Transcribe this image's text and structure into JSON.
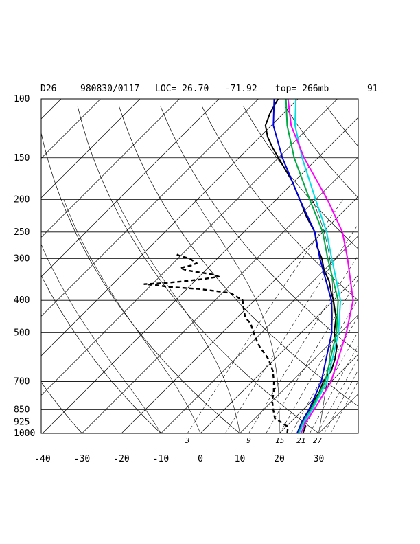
{
  "header": {
    "station": "D26",
    "datetime": "980830/0117",
    "location": "LOC= 26.70   -71.92",
    "top": "top= 266mb",
    "number": "91"
  },
  "chart_data": {
    "type": "line",
    "chart_kind": "skew-T log-P diagram",
    "y_axis": {
      "scale": "log",
      "range": [
        1000,
        100
      ],
      "ticks": [
        "100",
        "150",
        "200",
        "250",
        "300",
        "400",
        "500",
        "700",
        "850",
        "925",
        "1000"
      ]
    },
    "x_axis": {
      "range": [
        -40,
        40
      ],
      "ticks": [
        "-40",
        "-30",
        "-20",
        "-10",
        "0",
        "10",
        "20",
        "30"
      ]
    },
    "mixing_ratio_labels": [
      "3",
      "9",
      "15",
      "21",
      "27"
    ],
    "background_lines": [
      "isobars",
      "skewed isotherms",
      "dry adiabats",
      "moist adiabats",
      "mixing ratio lines (dashed)"
    ],
    "series": [
      {
        "color": "#000000",
        "style": "solid",
        "points": [
          [
            1000,
            26.0
          ],
          [
            950,
            24.8
          ],
          [
            925,
            23.0
          ],
          [
            900,
            22.3
          ],
          [
            850,
            21.6
          ],
          [
            800,
            20.5
          ],
          [
            750,
            19.6
          ],
          [
            700,
            18.0
          ],
          [
            650,
            17.3
          ],
          [
            600,
            15.3
          ],
          [
            550,
            12.6
          ],
          [
            500,
            8.4
          ],
          [
            450,
            5.0
          ],
          [
            400,
            0.0
          ],
          [
            375,
            -3.0
          ],
          [
            350,
            -6.0
          ],
          [
            325,
            -10.0
          ],
          [
            300,
            -13.5
          ],
          [
            275,
            -18.0
          ],
          [
            250,
            -22.0
          ],
          [
            225,
            -28.0
          ],
          [
            200,
            -34.0
          ],
          [
            175,
            -41.0
          ],
          [
            150,
            -50.0
          ],
          [
            140,
            -54.0
          ],
          [
            130,
            -58.0
          ],
          [
            120,
            -61.5
          ],
          [
            110,
            -63.5
          ],
          [
            100,
            -65.0
          ]
        ]
      },
      {
        "color": "#000000",
        "style": "dashed",
        "points": [
          [
            1000,
            22.0
          ],
          [
            970,
            21.0
          ],
          [
            950,
            20.0
          ],
          [
            925,
            17.5
          ],
          [
            900,
            15.0
          ],
          [
            880,
            14.0
          ],
          [
            850,
            12.5
          ],
          [
            800,
            10.0
          ],
          [
            750,
            8.0
          ],
          [
            700,
            5.5
          ],
          [
            650,
            2.5
          ],
          [
            600,
            -1.5
          ],
          [
            550,
            -7.0
          ],
          [
            520,
            -10.0
          ],
          [
            500,
            -12.0
          ],
          [
            470,
            -15.0
          ],
          [
            450,
            -18.0
          ],
          [
            420,
            -21.0
          ],
          [
            400,
            -23.0
          ],
          [
            380,
            -28.0
          ],
          [
            370,
            -37.0
          ],
          [
            365,
            -45.0
          ],
          [
            360,
            -49.0
          ],
          [
            358,
            -52.0
          ],
          [
            355,
            -47.0
          ],
          [
            350,
            -42.0
          ],
          [
            345,
            -38.0
          ],
          [
            340,
            -35.0
          ],
          [
            335,
            -37.0
          ],
          [
            330,
            -41.0
          ],
          [
            325,
            -45.0
          ],
          [
            320,
            -47.0
          ],
          [
            315,
            -45.0
          ],
          [
            310,
            -44.0
          ],
          [
            300,
            -47.0
          ],
          [
            295,
            -50.0
          ],
          [
            290,
            -52.0
          ]
        ]
      },
      {
        "color": "#0000dd",
        "style": "solid",
        "points": [
          [
            1000,
            24.5
          ],
          [
            925,
            22.8
          ],
          [
            850,
            21.5
          ],
          [
            700,
            17.5
          ],
          [
            500,
            7.8
          ],
          [
            400,
            -0.5
          ],
          [
            300,
            -14.0
          ],
          [
            250,
            -22.0
          ],
          [
            200,
            -34.0
          ],
          [
            150,
            -49.0
          ],
          [
            120,
            -59.5
          ],
          [
            100,
            -66.0
          ]
        ]
      },
      {
        "color": "#00aa44",
        "style": "solid",
        "points": [
          [
            1000,
            24.8
          ],
          [
            925,
            23.2
          ],
          [
            850,
            22.0
          ],
          [
            700,
            18.5
          ],
          [
            500,
            9.0
          ],
          [
            400,
            1.2
          ],
          [
            300,
            -12.0
          ],
          [
            250,
            -20.0
          ],
          [
            200,
            -31.5
          ],
          [
            150,
            -46.0
          ],
          [
            120,
            -56.0
          ],
          [
            100,
            -63.0
          ]
        ]
      },
      {
        "color": "#00e0e0",
        "style": "solid",
        "points": [
          [
            1000,
            25.0
          ],
          [
            925,
            23.4
          ],
          [
            850,
            22.3
          ],
          [
            700,
            19.0
          ],
          [
            500,
            9.5
          ],
          [
            400,
            1.8
          ],
          [
            300,
            -11.0
          ],
          [
            250,
            -19.0
          ],
          [
            200,
            -30.0
          ],
          [
            150,
            -44.0
          ],
          [
            120,
            -54.0
          ],
          [
            100,
            -60.5
          ]
        ]
      },
      {
        "color": "#ff00ff",
        "style": "solid",
        "points": [
          [
            1000,
            25.5
          ],
          [
            925,
            23.8
          ],
          [
            850,
            22.8
          ],
          [
            700,
            20.0
          ],
          [
            500,
            11.5
          ],
          [
            400,
            5.0
          ],
          [
            300,
            -7.0
          ],
          [
            250,
            -15.0
          ],
          [
            200,
            -27.0
          ],
          [
            150,
            -43.5
          ],
          [
            120,
            -55.0
          ],
          [
            100,
            -62.5
          ]
        ]
      }
    ]
  }
}
